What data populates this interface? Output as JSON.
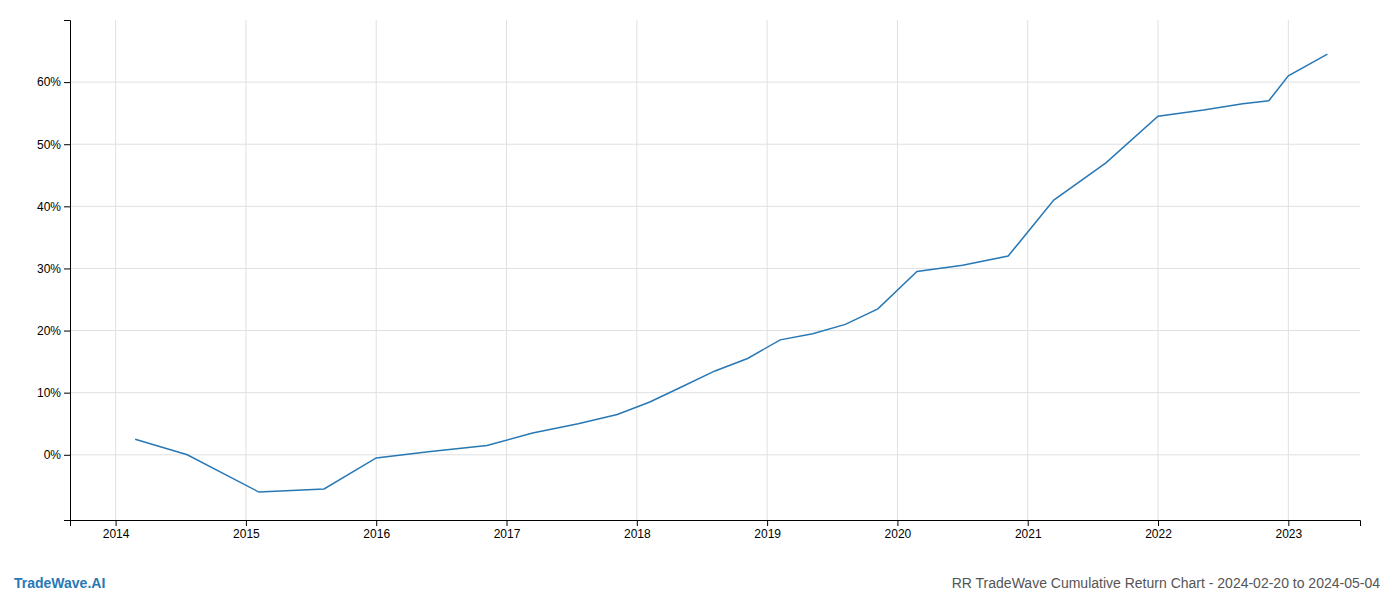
{
  "chart_data": {
    "type": "line",
    "title": "RR TradeWave Cumulative Return Chart - 2024-02-20 to 2024-05-04",
    "annotations": [
      "TradeWave.AI"
    ],
    "x": [
      2014.15,
      2014.55,
      2015.1,
      2015.6,
      2016.0,
      2016.4,
      2016.85,
      2017.2,
      2017.55,
      2017.85,
      2018.1,
      2018.35,
      2018.6,
      2018.85,
      2019.1,
      2019.35,
      2019.6,
      2019.85,
      2020.15,
      2020.5,
      2020.85,
      2021.2,
      2021.6,
      2022.0,
      2022.35,
      2022.65,
      2022.85,
      2023.0,
      2023.3
    ],
    "values": [
      2.5,
      0.0,
      -6.0,
      -5.5,
      -0.5,
      0.5,
      1.5,
      3.5,
      5.0,
      6.5,
      8.5,
      11.0,
      13.5,
      15.5,
      18.5,
      19.5,
      21.0,
      23.5,
      29.5,
      30.5,
      32.0,
      41.0,
      47.0,
      54.5,
      55.5,
      56.5,
      57.0,
      61.0,
      64.5
    ],
    "color": "#2878b5",
    "xlim": [
      2013.65,
      2023.55
    ],
    "ylim": [
      -10.5,
      70.0
    ],
    "xticks": [
      2014,
      2015,
      2016,
      2017,
      2018,
      2019,
      2020,
      2021,
      2022,
      2023
    ],
    "yticks": [
      {
        "value": 0,
        "label": "0%"
      },
      {
        "value": 10,
        "label": "10%"
      },
      {
        "value": 20,
        "label": "20%"
      },
      {
        "value": 30,
        "label": "30%"
      },
      {
        "value": 40,
        "label": "40%"
      },
      {
        "value": 50,
        "label": "50%"
      },
      {
        "value": 60,
        "label": "60%"
      }
    ],
    "grid": true
  }
}
